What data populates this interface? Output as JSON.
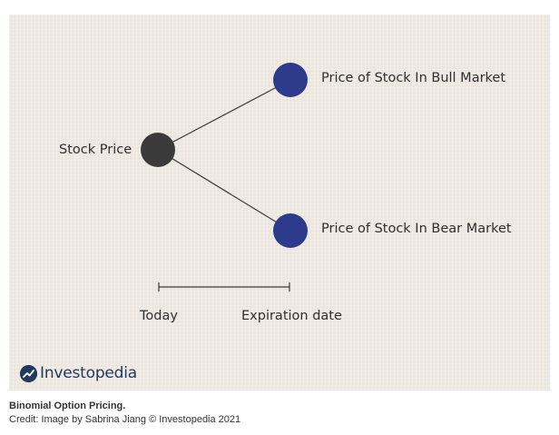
{
  "diagram": {
    "nodes": {
      "current": {
        "label": "Stock Price",
        "color": "#3a3a3a"
      },
      "bull": {
        "label": "Price of Stock In Bull Market",
        "color": "#2e3a8c"
      },
      "bear": {
        "label": "Price of Stock In Bear Market",
        "color": "#2e3a8c"
      }
    },
    "timeline": {
      "start_label": "Today",
      "end_label": "Expiration date"
    },
    "background_color": "#ede6de"
  },
  "brand": {
    "name": "Investopedia",
    "icon": "investopedia-logo-icon",
    "color": "#223a5e"
  },
  "caption": {
    "title": "Binomial Option Pricing.",
    "credit": "Credit: Image by Sabrina Jiang © Investopedia 2021"
  }
}
